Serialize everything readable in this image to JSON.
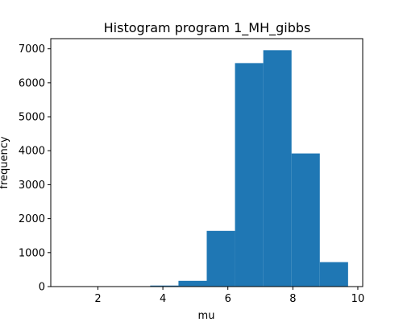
{
  "chart_data": {
    "type": "bar",
    "title": "Histogram program 1_MH_gibbs",
    "xlabel": "mu",
    "ylabel": "frequency",
    "xlim": [
      0.55,
      10.15
    ],
    "ylim": [
      0,
      7300
    ],
    "xticks": [
      2,
      4,
      6,
      8,
      10
    ],
    "yticks": [
      0,
      1000,
      2000,
      3000,
      4000,
      5000,
      6000,
      7000
    ],
    "bins": [
      {
        "x0": 1.0,
        "x1": 1.87,
        "value": 2
      },
      {
        "x0": 1.87,
        "x1": 2.74,
        "value": 3
      },
      {
        "x0": 2.74,
        "x1": 3.61,
        "value": 5
      },
      {
        "x0": 3.61,
        "x1": 4.48,
        "value": 30
      },
      {
        "x0": 4.48,
        "x1": 5.35,
        "value": 170
      },
      {
        "x0": 5.35,
        "x1": 6.22,
        "value": 1640
      },
      {
        "x0": 6.22,
        "x1": 7.09,
        "value": 6580
      },
      {
        "x0": 7.09,
        "x1": 7.96,
        "value": 6960
      },
      {
        "x0": 7.96,
        "x1": 8.83,
        "value": 3920
      },
      {
        "x0": 8.83,
        "x1": 9.7,
        "value": 720
      }
    ],
    "bar_color": "#1f77b4"
  }
}
